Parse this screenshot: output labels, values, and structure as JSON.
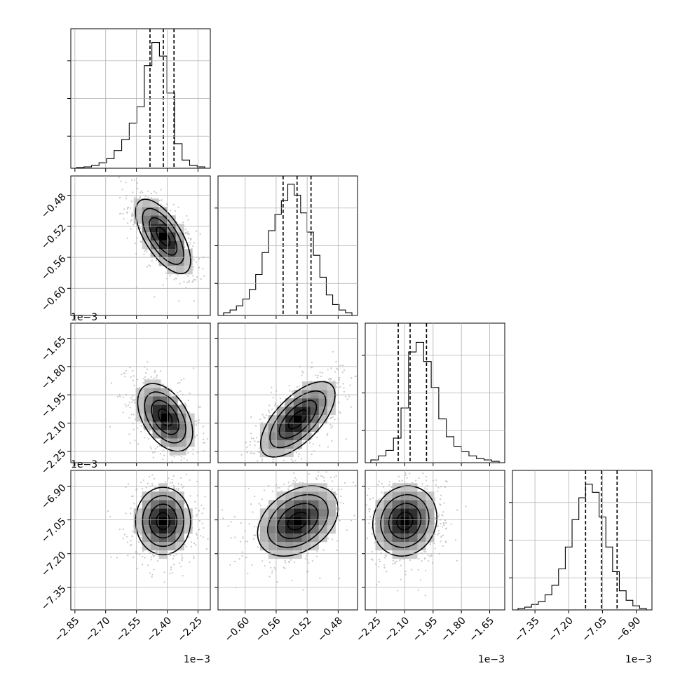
{
  "chart_data": {
    "type": "corner",
    "title": "",
    "grid": true,
    "n_params": 4,
    "scale_label": "1e−3",
    "params": [
      {
        "range": [
          -2.87,
          -2.19
        ],
        "ticks": [
          -2.85,
          -2.7,
          -2.55,
          -2.4,
          -2.25
        ],
        "tick_labels": [
          "−2.85",
          "−2.70",
          "−2.55",
          "−2.40",
          "−2.25"
        ],
        "quantiles": [
          -2.484,
          -2.419,
          -2.367
        ],
        "hist_counts": [
          0.005,
          0.01,
          0.02,
          0.04,
          0.07,
          0.13,
          0.21,
          0.33,
          0.45,
          0.75,
          0.92,
          0.82,
          0.55,
          0.18,
          0.06,
          0.02,
          0.01
        ]
      },
      {
        "range": [
          -0.635,
          -0.455
        ],
        "ticks": [
          -0.6,
          -0.56,
          -0.52,
          -0.48
        ],
        "tick_labels": [
          "−0.60",
          "−0.56",
          "−0.52",
          "−0.48"
        ],
        "quantiles": [
          -0.551,
          -0.533,
          -0.515
        ],
        "hist_counts": [
          0.02,
          0.04,
          0.07,
          0.12,
          0.19,
          0.3,
          0.46,
          0.62,
          0.74,
          0.84,
          0.96,
          0.88,
          0.75,
          0.61,
          0.44,
          0.28,
          0.15,
          0.08,
          0.04,
          0.02
        ]
      },
      {
        "range": [
          -2.31,
          -1.57
        ],
        "ticks": [
          -2.25,
          -2.1,
          -1.95,
          -1.8,
          -1.65
        ],
        "tick_labels": [
          "−2.25",
          "−2.10",
          "−1.95",
          "−1.80",
          "−1.65"
        ],
        "quantiles": [
          -2.135,
          -2.072,
          -1.985
        ],
        "hist_counts": [
          0.02,
          0.05,
          0.09,
          0.18,
          0.4,
          0.81,
          0.88,
          0.74,
          0.55,
          0.32,
          0.19,
          0.12,
          0.08,
          0.05,
          0.03,
          0.02,
          0.01
        ]
      },
      {
        "range": [
          -7.45,
          -6.83
        ],
        "ticks": [
          -7.35,
          -7.2,
          -7.05,
          -6.9
        ],
        "tick_labels": [
          "−7.35",
          "−7.20",
          "−7.05",
          "−6.90"
        ],
        "quantiles": [
          -7.125,
          -7.055,
          -6.985
        ],
        "hist_counts": [
          0.01,
          0.02,
          0.04,
          0.06,
          0.11,
          0.18,
          0.3,
          0.46,
          0.66,
          0.82,
          0.92,
          0.86,
          0.68,
          0.46,
          0.28,
          0.14,
          0.07,
          0.03,
          0.01
        ]
      }
    ],
    "pairs": [
      {
        "x": 0,
        "y": 1,
        "center": [
          -2.42,
          -0.533
        ],
        "spread": [
          0.067,
          0.024
        ],
        "corr": -0.65
      },
      {
        "x": 0,
        "y": 2,
        "center": [
          -2.41,
          -2.07
        ],
        "spread": [
          0.067,
          0.09
        ],
        "corr": -0.45
      },
      {
        "x": 1,
        "y": 2,
        "center": [
          -0.532,
          -2.08
        ],
        "spread": [
          0.024,
          0.1
        ],
        "corr": 0.65
      },
      {
        "x": 0,
        "y": 3,
        "center": [
          -2.42,
          -7.055
        ],
        "spread": [
          0.067,
          0.075
        ],
        "corr": 0.0
      },
      {
        "x": 1,
        "y": 3,
        "center": [
          -0.532,
          -7.055
        ],
        "spread": [
          0.026,
          0.078
        ],
        "corr": 0.35
      },
      {
        "x": 2,
        "y": 3,
        "center": [
          -2.1,
          -7.055
        ],
        "spread": [
          0.085,
          0.078
        ],
        "corr": 0.1
      }
    ]
  }
}
